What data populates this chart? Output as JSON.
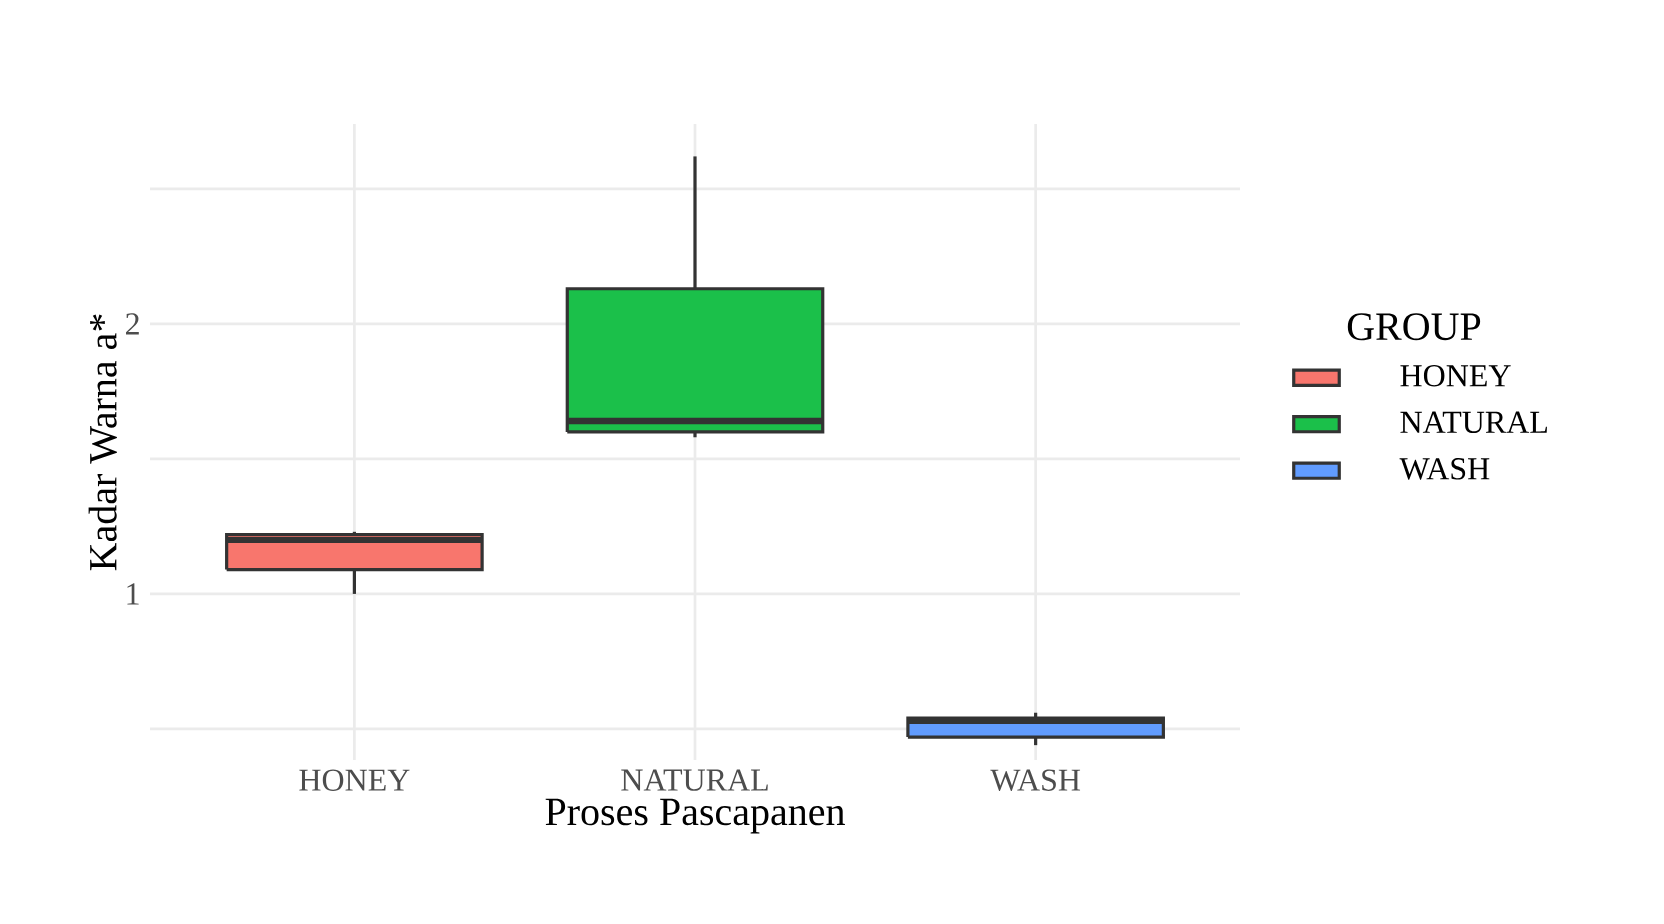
{
  "chart_data": {
    "type": "box",
    "xlabel": "Proses Pascapanen",
    "ylabel": "Kadar Warna a*",
    "legend_title": "GROUP",
    "legend": "right",
    "grid": true,
    "categories": [
      "HONEY",
      "NATURAL",
      "WASH"
    ],
    "series": [
      {
        "name": "HONEY",
        "color": "#f8766d",
        "boxes": [
          {
            "low": 1.0,
            "q1": 1.09,
            "median": 1.2,
            "q3": 1.22,
            "high": 1.23
          },
          null,
          null
        ]
      },
      {
        "name": "NATURAL",
        "color": "#1bc04a",
        "boxes": [
          null,
          {
            "low": 1.58,
            "q1": 1.6,
            "median": 1.64,
            "q3": 2.13,
            "high": 2.62
          },
          null
        ]
      },
      {
        "name": "WASH",
        "color": "#619cff",
        "boxes": [
          null,
          null,
          {
            "low": 0.44,
            "q1": 0.47,
            "median": 0.53,
            "q3": 0.54,
            "high": 0.56
          }
        ]
      }
    ],
    "ylim": [
      0.385,
      2.74
    ],
    "yticks": [
      {
        "value": 0.5,
        "label": null
      },
      1,
      {
        "value": 1.5,
        "label": null
      },
      2,
      {
        "value": 2.5,
        "label": null
      }
    ]
  }
}
